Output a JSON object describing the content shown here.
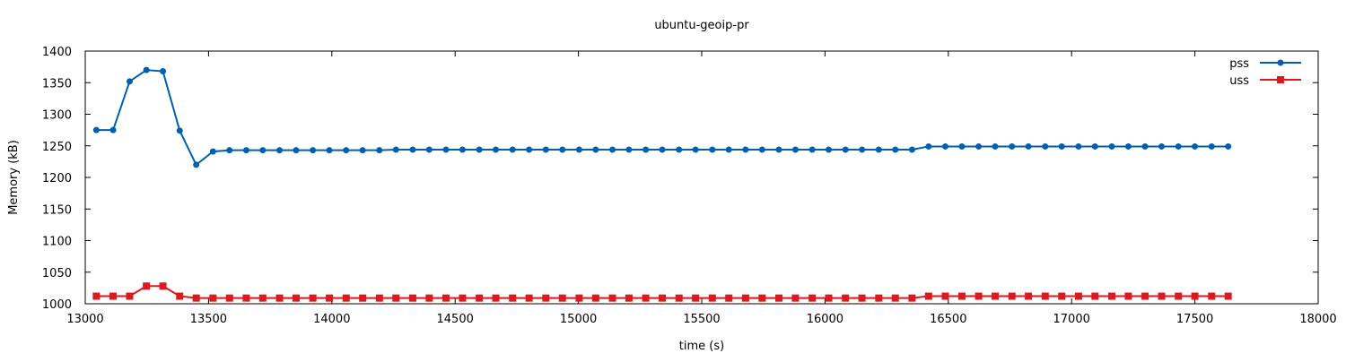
{
  "chart_data": {
    "type": "line",
    "title": "ubuntu-geoip-pr",
    "xlabel": "time (s)",
    "ylabel": "Memory (kB)",
    "xlim": [
      13000,
      18000
    ],
    "ylim": [
      1000,
      1400
    ],
    "xticks": [
      13000,
      13500,
      14000,
      14500,
      15000,
      15500,
      16000,
      16500,
      17000,
      17500,
      18000
    ],
    "yticks": [
      1000,
      1050,
      1100,
      1150,
      1200,
      1250,
      1300,
      1350,
      1400
    ],
    "grid": false,
    "legend_placement": "top-right",
    "x": [
      13045,
      13113,
      13180,
      13248,
      13315,
      13383,
      13450,
      13518,
      13585,
      13653,
      13720,
      13788,
      13855,
      13923,
      13990,
      14058,
      14125,
      14193,
      14260,
      14328,
      14395,
      14463,
      14530,
      14598,
      14665,
      14733,
      14800,
      14868,
      14935,
      15003,
      15070,
      15138,
      15205,
      15273,
      15340,
      15408,
      15475,
      15543,
      15610,
      15678,
      15745,
      15813,
      15880,
      15948,
      16015,
      16083,
      16150,
      16218,
      16285,
      16353,
      16420,
      16488,
      16555,
      16623,
      16690,
      16758,
      16825,
      16893,
      16960,
      17028,
      17095,
      17163,
      17230,
      17298,
      17365,
      17433,
      17500,
      17568,
      17635
    ],
    "series": [
      {
        "name": "pss",
        "color": "#0060ad",
        "marker": "circle",
        "values": [
          1275,
          1275,
          1352,
          1370,
          1368,
          1274,
          1220,
          1241,
          1243,
          1243,
          1243,
          1243,
          1243,
          1243,
          1243,
          1243,
          1243,
          1243,
          1244,
          1244,
          1244,
          1244,
          1244,
          1244,
          1244,
          1244,
          1244,
          1244,
          1244,
          1244,
          1244,
          1244,
          1244,
          1244,
          1244,
          1244,
          1244,
          1244,
          1244,
          1244,
          1244,
          1244,
          1244,
          1244,
          1244,
          1244,
          1244,
          1244,
          1244,
          1244,
          1249,
          1249,
          1249,
          1249,
          1249,
          1249,
          1249,
          1249,
          1249,
          1249,
          1249,
          1249,
          1249,
          1249,
          1249,
          1249,
          1249,
          1249,
          1249
        ]
      },
      {
        "name": "uss",
        "color": "#dd181f",
        "marker": "square",
        "values": [
          1012,
          1012,
          1012,
          1028,
          1028,
          1012,
          1009,
          1009,
          1009,
          1009,
          1009,
          1009,
          1009,
          1009,
          1009,
          1009,
          1009,
          1009,
          1009,
          1009,
          1009,
          1009,
          1009,
          1009,
          1009,
          1009,
          1009,
          1009,
          1009,
          1009,
          1009,
          1009,
          1009,
          1009,
          1009,
          1009,
          1009,
          1009,
          1009,
          1009,
          1009,
          1009,
          1009,
          1009,
          1009,
          1009,
          1009,
          1009,
          1009,
          1009,
          1012,
          1012,
          1012,
          1012,
          1012,
          1012,
          1012,
          1012,
          1012,
          1012,
          1012,
          1012,
          1012,
          1012,
          1012,
          1012,
          1012,
          1012,
          1012
        ]
      }
    ]
  }
}
